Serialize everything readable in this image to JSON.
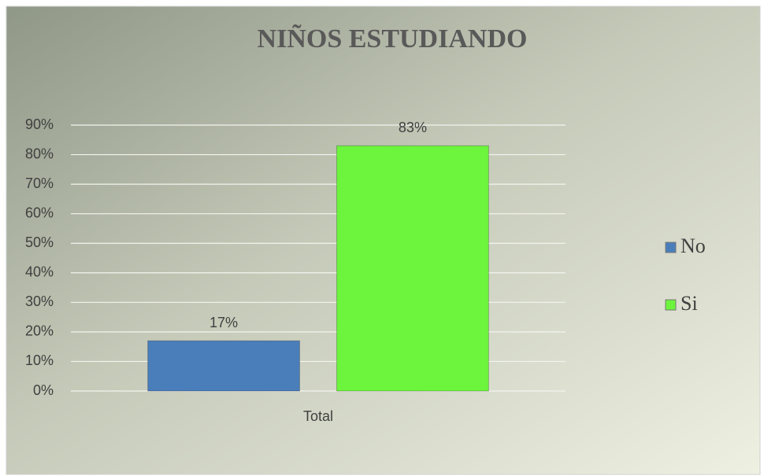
{
  "chart_data": {
    "type": "bar",
    "title": "NIÑOS ESTUDIANDO",
    "categories": [
      "Total"
    ],
    "series": [
      {
        "name": "No",
        "color": "#4a7ebb",
        "values": [
          17
        ],
        "value_labels": [
          "17%"
        ]
      },
      {
        "name": "Si",
        "color": "#6cf53c",
        "values": [
          83
        ],
        "value_labels": [
          "83%"
        ]
      }
    ],
    "ylim": [
      0,
      90
    ],
    "yticks": [
      {
        "value": 0,
        "label": "0%"
      },
      {
        "value": 10,
        "label": "10%"
      },
      {
        "value": 20,
        "label": "20%"
      },
      {
        "value": 30,
        "label": "30%"
      },
      {
        "value": 40,
        "label": "40%"
      },
      {
        "value": 50,
        "label": "50%"
      },
      {
        "value": 60,
        "label": "60%"
      },
      {
        "value": 70,
        "label": "70%"
      },
      {
        "value": 80,
        "label": "80%"
      },
      {
        "value": 90,
        "label": "90%"
      }
    ],
    "grid": true,
    "legend": "right"
  }
}
